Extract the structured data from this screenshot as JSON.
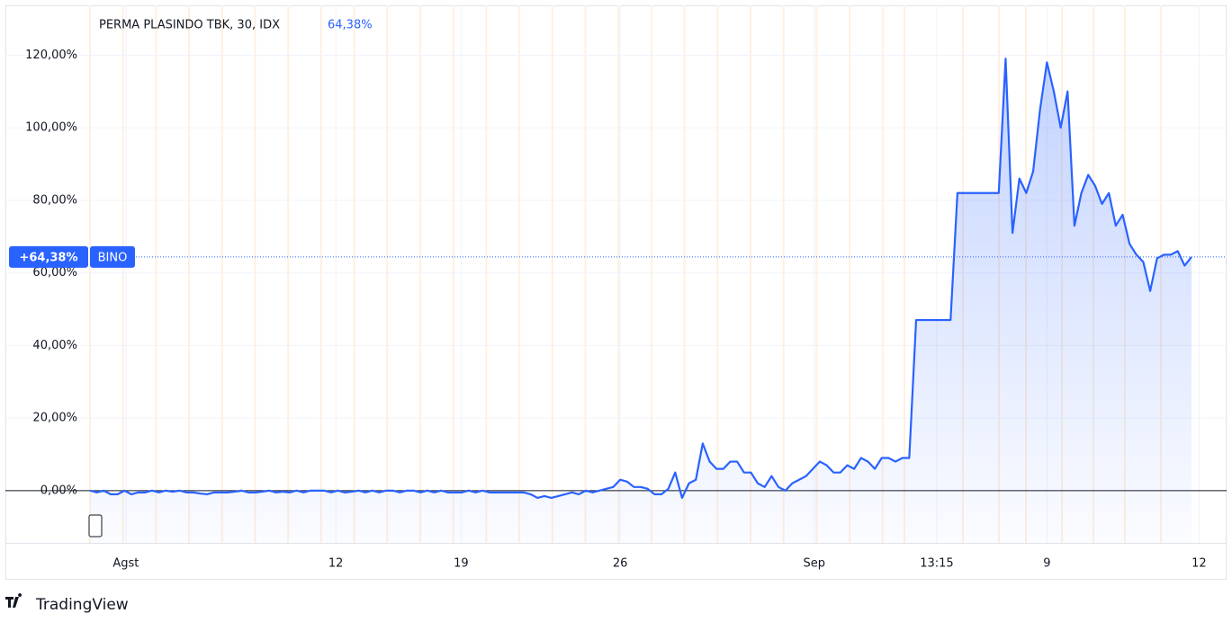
{
  "chart_data": {
    "type": "area-line",
    "title": "PERMA PLASINDO TBK, 30, IDX",
    "header_value": "64,38%",
    "symbol": "BINO",
    "last_value": 64.38,
    "last_label": "+64,38%",
    "color": "#2962ff",
    "values": [
      0,
      -0.5,
      0,
      -1,
      -1,
      0,
      -1,
      -0.5,
      -0.5,
      0,
      -0.5,
      0,
      -0.3,
      0,
      -0.5,
      -0.5,
      -0.8,
      -1,
      -0.5,
      -0.5,
      -0.5,
      -0.3,
      0,
      -0.5,
      -0.5,
      -0.3,
      0,
      -0.5,
      -0.3,
      -0.5,
      0,
      -0.5,
      0,
      0,
      0,
      -0.5,
      0,
      -0.5,
      -0.3,
      0,
      -0.5,
      0,
      -0.5,
      0,
      0,
      -0.5,
      0,
      0,
      -0.5,
      0,
      -0.5,
      0,
      -0.5,
      -0.5,
      -0.5,
      0,
      -0.5,
      0,
      -0.5,
      -0.5,
      -0.5,
      -0.5,
      -0.5,
      -0.5,
      -1,
      -2,
      -1.5,
      -2,
      -1.5,
      -1,
      -0.5,
      -1,
      0,
      -0.5,
      0,
      0.5,
      1,
      3,
      2.5,
      1,
      1,
      0.5,
      -1,
      -1,
      0.5,
      5,
      -2,
      2,
      3,
      13,
      8,
      6,
      6,
      8,
      8,
      5,
      5,
      2,
      1,
      4,
      1,
      0,
      2,
      3,
      4,
      6,
      8,
      7,
      5,
      5,
      7,
      6,
      9,
      8,
      6,
      9,
      9,
      8,
      9,
      9,
      47,
      47,
      47,
      47,
      47,
      47,
      82,
      82,
      82,
      82,
      82,
      82,
      82,
      119,
      71,
      86,
      82,
      88,
      105,
      118,
      110,
      100,
      110,
      73,
      82,
      87,
      84,
      79,
      82,
      73,
      76,
      68,
      65,
      63,
      55,
      64,
      65,
      65,
      66,
      62,
      64.38
    ],
    "xlim": [
      -12.3,
      165.1
    ],
    "xticks": [
      {
        "value": 5.2,
        "label": "Agst"
      },
      {
        "value": 35.7,
        "label": "12"
      },
      {
        "value": 53.9,
        "label": "19"
      },
      {
        "value": 77,
        "label": "26"
      },
      {
        "value": 105.2,
        "label": "Sep"
      },
      {
        "value": 123,
        "label": "13:15"
      },
      {
        "value": 139,
        "label": "9"
      },
      {
        "value": 161.1,
        "label": "12"
      }
    ],
    "ylim": [
      -14.4,
      133.7
    ],
    "yticks": [
      {
        "value": 0,
        "label": "0,00%"
      },
      {
        "value": 20,
        "label": "20,00%"
      },
      {
        "value": 40,
        "label": "40,00%"
      },
      {
        "value": 60,
        "label": "60,00%"
      },
      {
        "value": 80,
        "label": "80,00%"
      },
      {
        "value": 100,
        "label": "100,00%"
      },
      {
        "value": 120,
        "label": "120,00%"
      }
    ],
    "grid": true,
    "brand": "TradingView"
  }
}
